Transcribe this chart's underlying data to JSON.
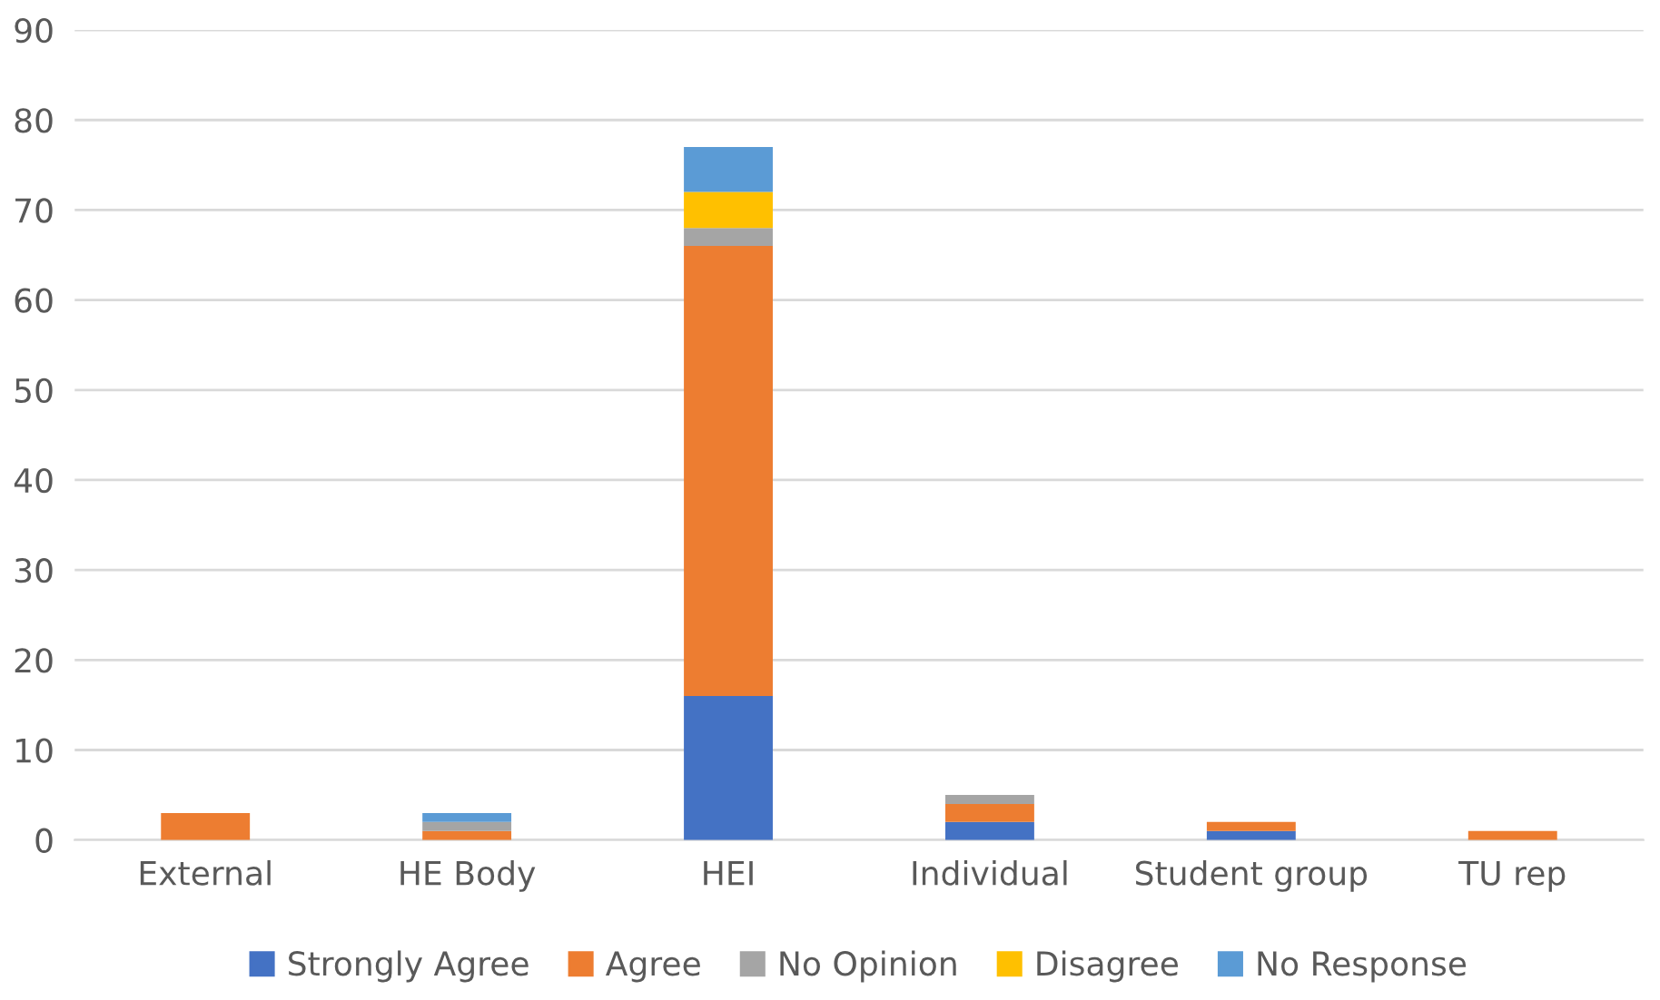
{
  "chart_data": {
    "type": "bar",
    "stacked": true,
    "categories": [
      "External",
      "HE Body",
      "HEI",
      "Individual",
      "Student group",
      "TU rep"
    ],
    "series": [
      {
        "name": "Strongly Agree",
        "color": "#4472c4",
        "values": [
          0,
          0,
          16,
          2,
          1,
          0
        ]
      },
      {
        "name": "Agree",
        "color": "#ed7d31",
        "values": [
          3,
          1,
          50,
          2,
          1,
          1
        ]
      },
      {
        "name": "No Opinion",
        "color": "#a5a5a5",
        "values": [
          0,
          1,
          2,
          1,
          0,
          0
        ]
      },
      {
        "name": "Disagree",
        "color": "#ffc000",
        "values": [
          0,
          0,
          4,
          0,
          0,
          0
        ]
      },
      {
        "name": "No Response",
        "color": "#5b9bd5",
        "values": [
          0,
          1,
          5,
          0,
          0,
          0
        ]
      }
    ],
    "ylim": [
      0,
      90
    ],
    "yticks": [
      0,
      10,
      20,
      30,
      40,
      50,
      60,
      70,
      80,
      90
    ],
    "grid": "y",
    "legend": "bottom"
  }
}
